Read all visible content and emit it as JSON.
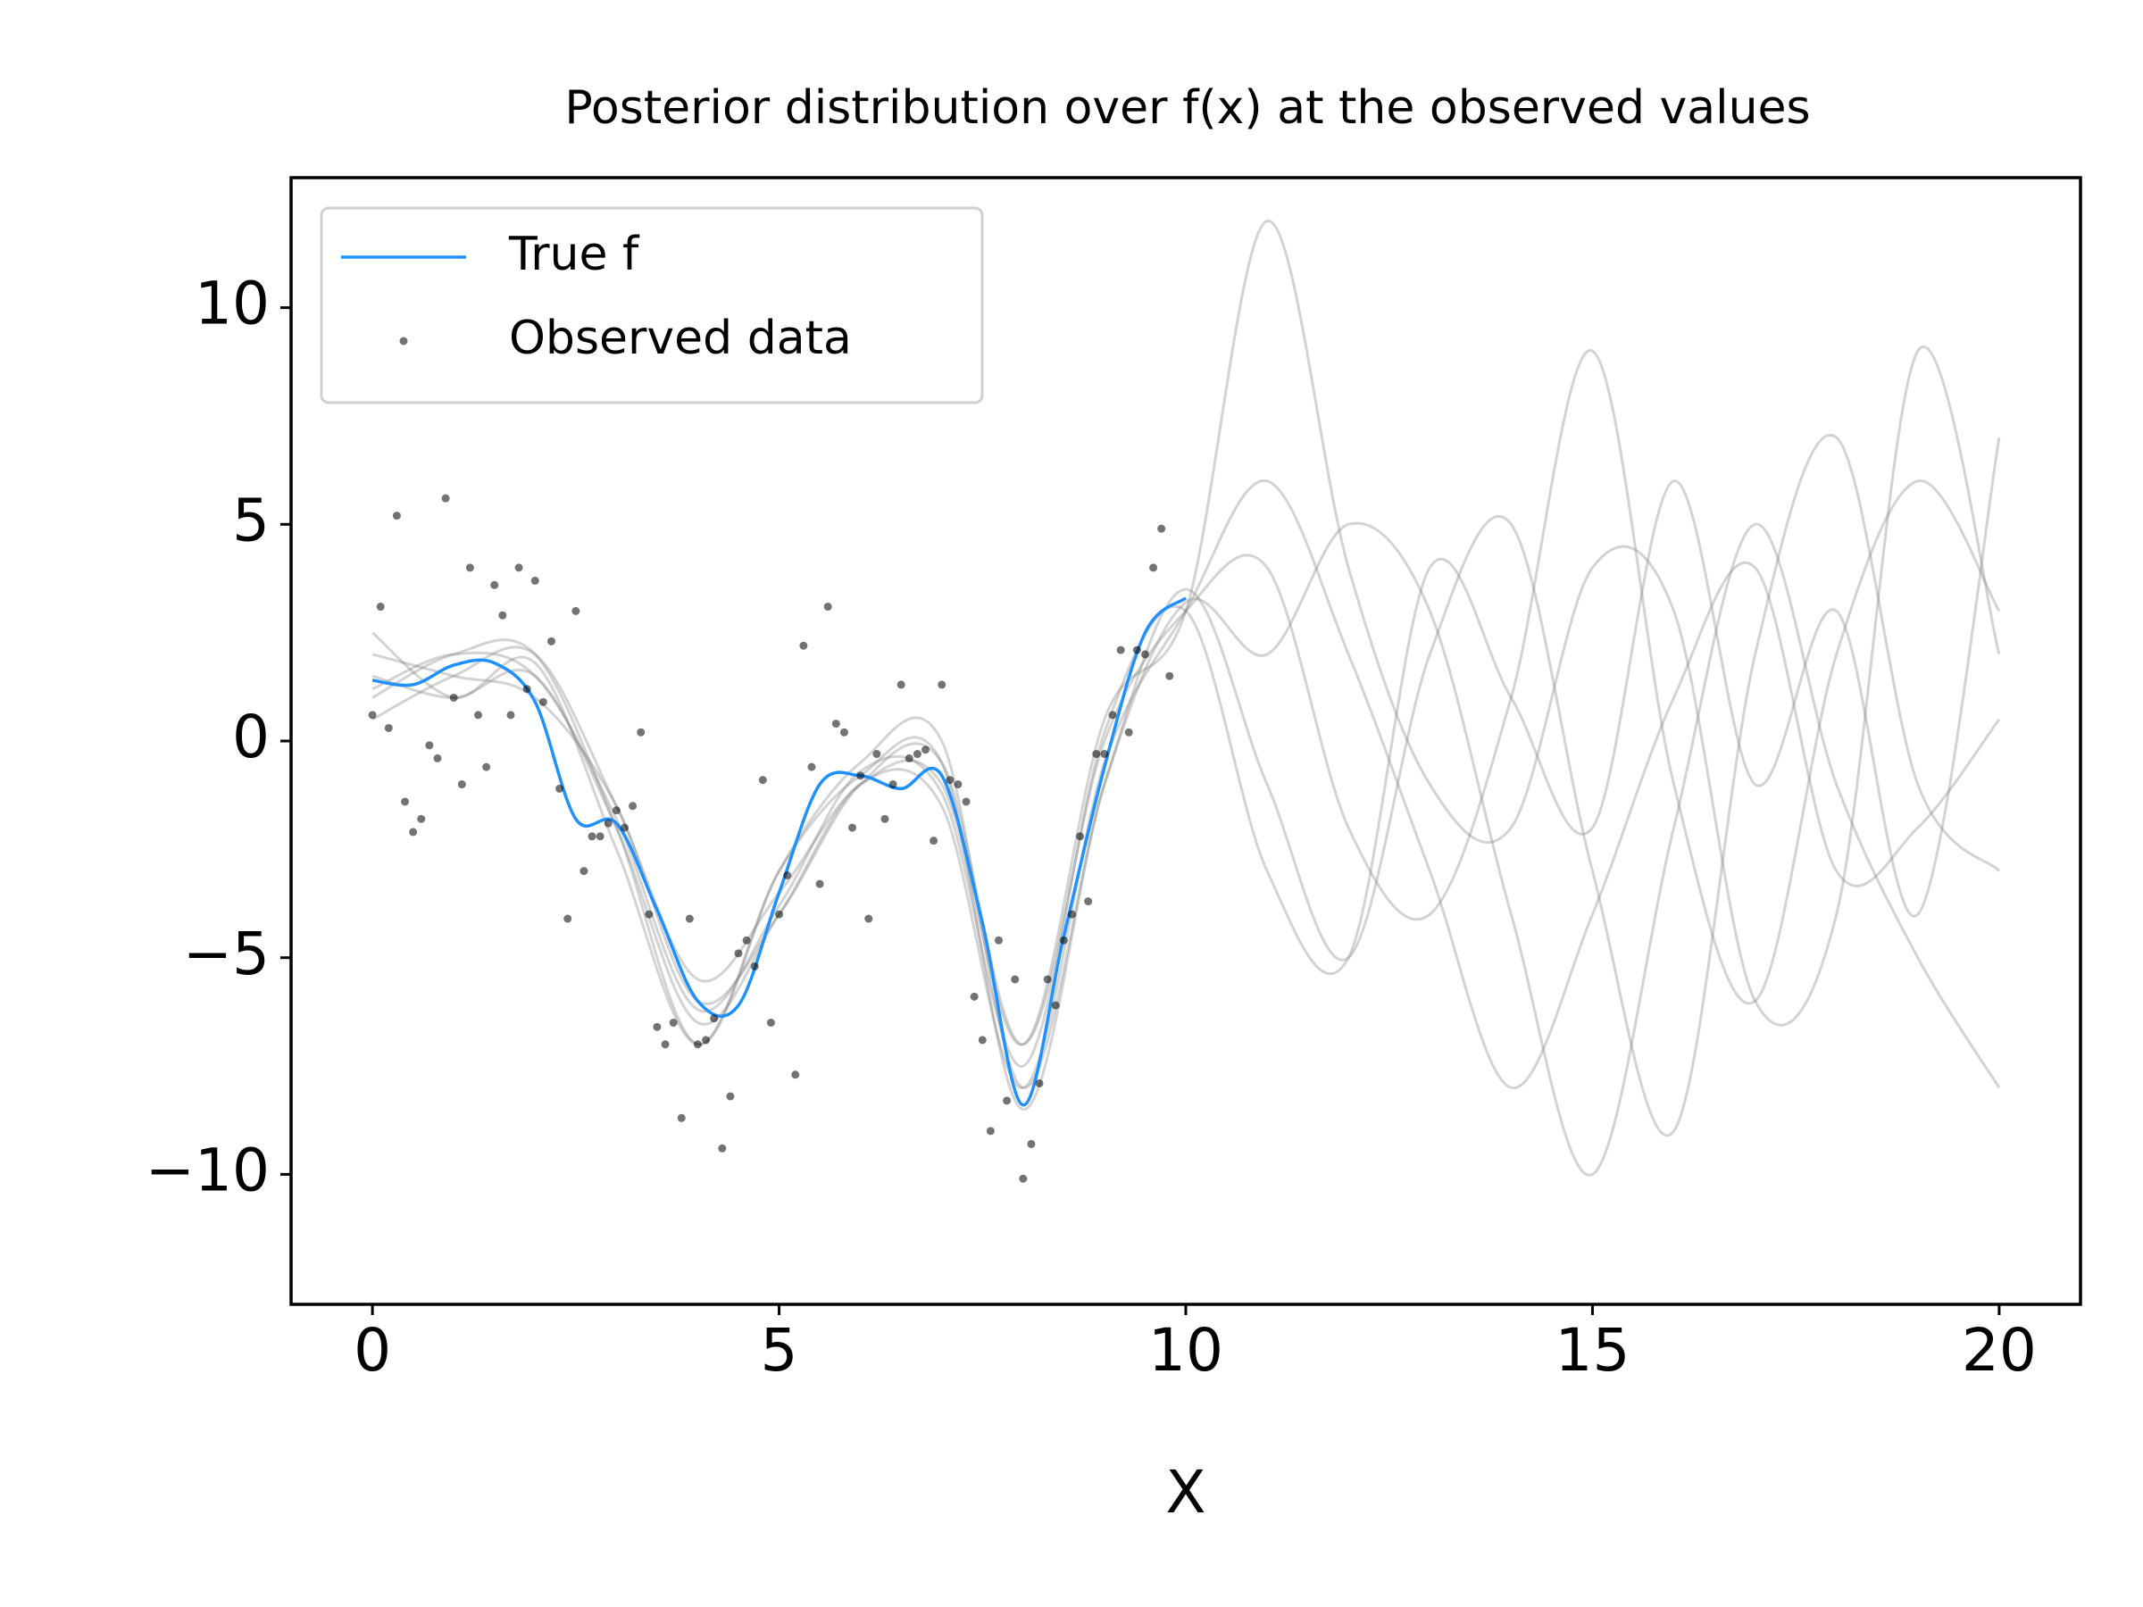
{
  "chart_data": {
    "type": "line",
    "title": "Posterior distribution over f(x) at the observed values",
    "xlabel": "X",
    "xlim": [
      -1,
      21
    ],
    "ylim": [
      -13,
      13
    ],
    "xticks": [
      0,
      5,
      10,
      15,
      20
    ],
    "yticks": [
      {
        "value": -10,
        "label": "−10"
      },
      {
        "value": -5,
        "label": "−5"
      },
      0,
      5,
      10
    ],
    "legend": "upper left",
    "samples": {
      "color": "#808080",
      "x": [
        0,
        1,
        2,
        3,
        4,
        5,
        6,
        7,
        8,
        9,
        10,
        11,
        12,
        13,
        14,
        15,
        16,
        17,
        18,
        19,
        20
      ],
      "values": [
        [
          2,
          1.5,
          1,
          -1.5,
          -6,
          -4,
          -1,
          -0.5,
          -7,
          0,
          3,
          4,
          -2,
          -4,
          1,
          9,
          -1,
          -6,
          2,
          6,
          3
        ],
        [
          1,
          2,
          2,
          -2,
          -7,
          -3,
          -0.5,
          0,
          -8,
          -1,
          3.5,
          -1,
          -5,
          2,
          5,
          -3,
          -9,
          2,
          7,
          -1,
          -3
        ],
        [
          1.5,
          1,
          1.5,
          -2,
          -6.5,
          -4,
          -1,
          -1.5,
          -8,
          -0.5,
          3,
          6,
          2,
          -3,
          -8,
          -4,
          1,
          4,
          -3,
          -2,
          0.5
        ],
        [
          0.5,
          1.5,
          2,
          -1.5,
          -5.5,
          -3.5,
          -1,
          -1,
          -7,
          0.5,
          3,
          12,
          4,
          -1,
          -2,
          4,
          3,
          -6,
          -4,
          9,
          2
        ],
        [
          2.5,
          1,
          1.8,
          -2.5,
          -7,
          -3,
          -0.8,
          -0.5,
          -8.5,
          -1,
          3.2,
          2,
          5,
          3,
          -4,
          -10,
          -2,
          5,
          -1,
          -5,
          -8
        ],
        [
          1.2,
          2,
          1.5,
          -1.8,
          -6.2,
          -3.8,
          -0.7,
          -1.2,
          -7.5,
          0.2,
          3,
          -3,
          -5,
          4,
          1,
          -2,
          6,
          -1,
          3,
          -4,
          7
        ]
      ]
    },
    "series": [
      {
        "name": "True f",
        "type": "line",
        "color": "#1e90ff",
        "x": [
          0,
          0.5,
          1,
          1.5,
          2,
          2.5,
          3,
          3.5,
          4,
          4.5,
          5,
          5.5,
          6,
          6.5,
          7,
          7.5,
          8,
          8.5,
          9,
          9.5,
          10
        ],
        "values": [
          1.4,
          1.3,
          1.75,
          1.8,
          0.9,
          -1.8,
          -1.9,
          -3.9,
          -6.0,
          -6.1,
          -3.5,
          -1.0,
          -0.8,
          -1.1,
          -0.8,
          -4.2,
          -8.4,
          -4.5,
          -0.6,
          2.5,
          3.3
        ]
      },
      {
        "name": "Observed data",
        "type": "scatter",
        "color": "#000000",
        "x": [
          0,
          0.1,
          0.2,
          0.3,
          0.4,
          0.5,
          0.6,
          0.7,
          0.8,
          0.9,
          1,
          1.1,
          1.2,
          1.3,
          1.4,
          1.5,
          1.6,
          1.7,
          1.8,
          1.9,
          2,
          2.1,
          2.2,
          2.3,
          2.4,
          2.5,
          2.6,
          2.7,
          2.8,
          2.9,
          3,
          3.1,
          3.2,
          3.3,
          3.4,
          3.5,
          3.6,
          3.7,
          3.8,
          3.9,
          4,
          4.1,
          4.2,
          4.3,
          4.4,
          4.5,
          4.6,
          4.7,
          4.8,
          4.9,
          5,
          5.1,
          5.2,
          5.3,
          5.4,
          5.5,
          5.6,
          5.7,
          5.8,
          5.9,
          6,
          6.1,
          6.2,
          6.3,
          6.4,
          6.5,
          6.6,
          6.7,
          6.8,
          6.9,
          7,
          7.1,
          7.2,
          7.3,
          7.4,
          7.5,
          7.6,
          7.7,
          7.8,
          7.9,
          8,
          8.1,
          8.2,
          8.3,
          8.4,
          8.5,
          8.6,
          8.7,
          8.8,
          8.9,
          9,
          9.1,
          9.2,
          9.3,
          9.4,
          9.5,
          9.6,
          9.7,
          9.8
        ],
        "values": [
          0.6,
          3.1,
          0.3,
          5.2,
          -1.4,
          -2.1,
          -1.8,
          -0.1,
          -0.4,
          5.6,
          1.0,
          -1.0,
          4.0,
          0.6,
          -0.6,
          3.6,
          2.9,
          0.6,
          4.0,
          1.2,
          3.7,
          0.9,
          2.3,
          -1.1,
          -4.1,
          3.0,
          -3.0,
          -2.2,
          -2.2,
          -1.9,
          -1.6,
          -2.0,
          -1.5,
          0.2,
          -4.0,
          -6.6,
          -7.0,
          -6.5,
          -8.7,
          -4.1,
          -7.0,
          -6.9,
          -6.4,
          -9.4,
          -8.2,
          -4.9,
          -4.6,
          -5.2,
          -0.9,
          -6.5,
          -4.0,
          -3.1,
          -7.7,
          2.2,
          -0.6,
          -3.3,
          3.1,
          0.4,
          0.2,
          -2.0,
          -0.8,
          -4.1,
          -0.3,
          -1.8,
          -1.0,
          1.3,
          -0.4,
          -0.3,
          -0.2,
          -2.3,
          1.3,
          -0.9,
          -1.0,
          -1.4,
          -5.9,
          -6.9,
          -9.0,
          -4.6,
          -8.3,
          -5.5,
          -10.1,
          -9.3,
          -7.9,
          -5.5,
          -6.1,
          -4.6,
          -4.0,
          -2.2,
          -3.7,
          -0.3,
          -0.3,
          0.6,
          2.1,
          0.2,
          2.1,
          2.0,
          4.0,
          4.9,
          1.5
        ]
      }
    ]
  }
}
